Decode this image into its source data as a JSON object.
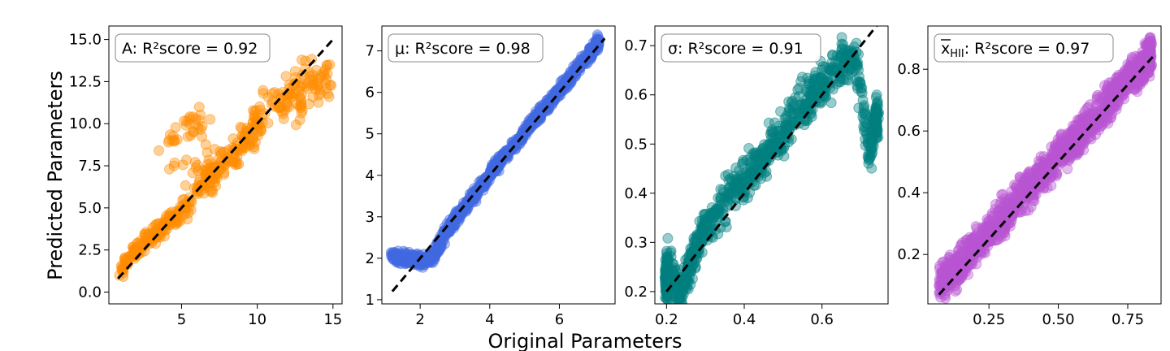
{
  "figure": {
    "ylabel": "Predicted Parameters",
    "xlabel": "Original Parameters"
  },
  "chart_data": [
    {
      "type": "scatter",
      "title": "",
      "annotation": "A: R²score = 0.92",
      "color": "#ff8c00",
      "xlim": [
        0.2,
        15.6
      ],
      "ylim": [
        -0.7,
        15.8
      ],
      "xticks": [
        5,
        10,
        15
      ],
      "xtick_labels": [
        "5",
        "10",
        "15"
      ],
      "yticks": [
        0,
        2.5,
        5,
        7.5,
        10,
        12.5,
        15
      ],
      "ytick_labels": [
        "0.0",
        "2.5",
        "5.0",
        "7.5",
        "10.0",
        "12.5",
        "15.0"
      ],
      "identity_line": [
        0.8,
        15.0
      ],
      "spread": 0.7,
      "n_points": 420,
      "x": [
        0.9,
        1.1,
        1.3,
        1.5,
        1.8,
        2.0,
        2.3,
        2.6,
        3.0,
        3.3,
        3.7,
        4.0,
        4.4,
        4.8,
        5.2,
        5.6,
        6.0,
        6.4,
        6.8,
        7.2,
        7.6,
        8.0,
        8.4,
        8.8,
        9.2,
        9.6,
        10.0,
        10.5,
        11.0,
        11.5,
        12.0,
        12.5,
        13.0,
        13.5,
        14.0,
        14.5,
        14.8,
        3.5,
        5.3,
        6.2,
        7.0,
        4.2,
        9.8,
        10.4,
        12.9
      ],
      "y": [
        1.0,
        1.3,
        1.7,
        2.1,
        2.3,
        2.4,
        2.6,
        3.1,
        3.2,
        3.5,
        3.8,
        4.1,
        4.3,
        4.7,
        5.0,
        5.4,
        6.2,
        6.4,
        6.8,
        6.9,
        7.7,
        8.0,
        8.3,
        8.5,
        9.0,
        9.7,
        10.2,
        10.6,
        11.3,
        11.0,
        11.7,
        12.4,
        12.3,
        12.8,
        12.6,
        12.4,
        12.3,
        8.4,
        9.9,
        10.2,
        7.0,
        7.3,
        8.5,
        11.8,
        11.3
      ]
    },
    {
      "type": "scatter",
      "title": "",
      "annotation": "μ: R²score = 0.98",
      "color": "#4169e1",
      "xlim": [
        0.9,
        7.6
      ],
      "ylim": [
        0.9,
        7.6
      ],
      "xticks": [
        2,
        4,
        6
      ],
      "xtick_labels": [
        "2",
        "4",
        "6"
      ],
      "yticks": [
        1,
        2,
        3,
        4,
        5,
        6,
        7
      ],
      "ytick_labels": [
        "1",
        "2",
        "3",
        "4",
        "5",
        "6",
        "7"
      ],
      "identity_line": [
        1.2,
        7.3
      ],
      "spread": 0.1,
      "n_points": 1100,
      "x": [
        1.2,
        1.4,
        1.6,
        1.8,
        2.0,
        2.2,
        2.4,
        2.6,
        2.8,
        3.0,
        3.3,
        3.6,
        3.9,
        4.2,
        4.5,
        4.8,
        5.1,
        5.4,
        5.7,
        6.0,
        6.3,
        6.6,
        6.9,
        7.1
      ],
      "y": [
        2.05,
        2.02,
        2.0,
        1.98,
        1.95,
        1.95,
        2.05,
        2.4,
        2.7,
        2.95,
        3.25,
        3.55,
        3.9,
        4.25,
        4.55,
        4.8,
        5.15,
        5.45,
        5.75,
        6.05,
        6.35,
        6.65,
        6.95,
        7.2
      ]
    },
    {
      "type": "scatter",
      "title": "",
      "annotation": "σ: R²score = 0.91",
      "color": "#008080",
      "xlim": [
        0.17,
        0.77
      ],
      "ylim": [
        0.175,
        0.74
      ],
      "xticks": [
        0.2,
        0.4,
        0.6
      ],
      "xtick_labels": [
        "0.2",
        "0.4",
        "0.6"
      ],
      "yticks": [
        0.2,
        0.3,
        0.4,
        0.5,
        0.6,
        0.7
      ],
      "ytick_labels": [
        "0.2",
        "0.3",
        "0.4",
        "0.5",
        "0.6",
        "0.7"
      ],
      "identity_line": [
        0.2,
        0.75
      ],
      "spread": 0.03,
      "n_points": 900,
      "x": [
        0.2,
        0.2,
        0.2,
        0.22,
        0.24,
        0.26,
        0.28,
        0.3,
        0.33,
        0.36,
        0.39,
        0.42,
        0.45,
        0.48,
        0.51,
        0.54,
        0.57,
        0.6,
        0.63,
        0.66,
        0.69,
        0.72,
        0.74
      ],
      "y": [
        0.2,
        0.23,
        0.26,
        0.22,
        0.2,
        0.25,
        0.3,
        0.33,
        0.36,
        0.4,
        0.42,
        0.44,
        0.47,
        0.5,
        0.53,
        0.57,
        0.6,
        0.62,
        0.65,
        0.67,
        0.66,
        0.48,
        0.55
      ]
    },
    {
      "type": "scatter",
      "title": "",
      "annotation": "x̄_HII: R²score = 0.97",
      "annotation_main": "x",
      "annotation_sub": "HII",
      "annotation_rest": ": R²score = 0.97",
      "color": "#ba55d3",
      "xlim": [
        0.03,
        0.87
      ],
      "ylim": [
        0.04,
        0.94
      ],
      "xticks": [
        0.25,
        0.5,
        0.75
      ],
      "xtick_labels": [
        "0.25",
        "0.50",
        "0.75"
      ],
      "yticks": [
        0.2,
        0.4,
        0.6,
        0.8
      ],
      "ytick_labels": [
        "0.2",
        "0.4",
        "0.6",
        "0.8"
      ],
      "identity_line": [
        0.07,
        0.84
      ],
      "spread": 0.04,
      "n_points": 1400,
      "x": [
        0.07,
        0.1,
        0.13,
        0.16,
        0.2,
        0.24,
        0.28,
        0.32,
        0.36,
        0.4,
        0.44,
        0.48,
        0.52,
        0.56,
        0.6,
        0.64,
        0.68,
        0.72,
        0.76,
        0.8,
        0.83
      ],
      "y": [
        0.1,
        0.13,
        0.15,
        0.18,
        0.22,
        0.26,
        0.3,
        0.34,
        0.38,
        0.42,
        0.46,
        0.5,
        0.54,
        0.57,
        0.61,
        0.65,
        0.69,
        0.73,
        0.77,
        0.8,
        0.85
      ]
    }
  ]
}
